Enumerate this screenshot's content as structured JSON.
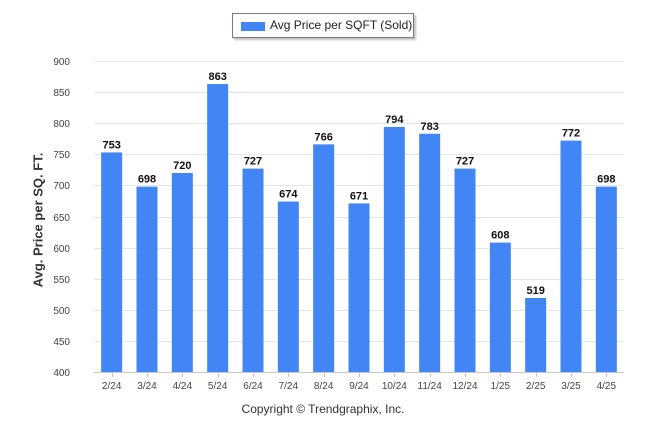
{
  "chart_data": {
    "type": "bar",
    "categories": [
      "2/24",
      "3/24",
      "4/24",
      "5/24",
      "6/24",
      "7/24",
      "8/24",
      "9/24",
      "10/24",
      "11/24",
      "12/24",
      "1/25",
      "2/25",
      "3/25",
      "4/25"
    ],
    "series": [
      {
        "name": "Avg Price per SQFT (Sold)",
        "values": [
          753,
          698,
          720,
          863,
          727,
          674,
          766,
          671,
          794,
          783,
          727,
          608,
          519,
          772,
          698
        ]
      }
    ],
    "ylabel": "Avg. Price per SQ. FT.",
    "xlabel": "",
    "ylim": [
      400,
      900
    ],
    "yticks": [
      400,
      450,
      500,
      550,
      600,
      650,
      700,
      750,
      800,
      850,
      900
    ],
    "grid": true,
    "legend_position": "top-center",
    "bar_color": "#4285f4",
    "data_labels": true
  },
  "footer": {
    "credit": "Copyright © Trendgraphix, Inc."
  }
}
